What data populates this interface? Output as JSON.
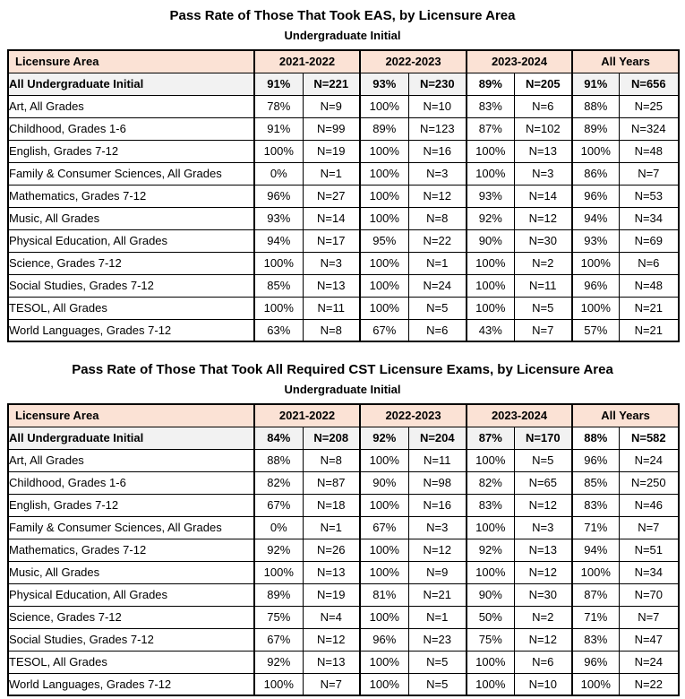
{
  "colors": {
    "header_bg": "#fbe2d5",
    "summary_bg": "#f2f2f2",
    "border": "#000000",
    "page_bg": "#ffffff",
    "text": "#000000"
  },
  "tables": [
    {
      "id": "eas",
      "title": "Pass Rate of Those That Took EAS, by Licensure Area",
      "subtitle": "Undergraduate Initial",
      "columns": {
        "label_header": "Licensure Area",
        "year_groups": [
          "2021-2022",
          "2022-2023",
          "2023-2024",
          "All Years"
        ],
        "subcolumns_per_group": [
          "pass_rate",
          "n_count"
        ]
      },
      "summary_row": {
        "label": "All Undergraduate Initial",
        "values": [
          "91%",
          "N=221",
          "93%",
          "N=230",
          "89%",
          "N=205",
          "91%",
          "N=656"
        ],
        "plain_background_cells": [
          4,
          5
        ]
      },
      "rows": [
        {
          "label": "Art, All Grades",
          "values": [
            "78%",
            "N=9",
            "100%",
            "N=10",
            "83%",
            "N=6",
            "88%",
            "N=25"
          ]
        },
        {
          "label": "Childhood, Grades 1-6",
          "values": [
            "91%",
            "N=99",
            "89%",
            "N=123",
            "87%",
            "N=102",
            "89%",
            "N=324"
          ]
        },
        {
          "label": "English, Grades 7-12",
          "values": [
            "100%",
            "N=19",
            "100%",
            "N=16",
            "100%",
            "N=13",
            "100%",
            "N=48"
          ]
        },
        {
          "label": "Family & Consumer Sciences, All Grades",
          "values": [
            "0%",
            "N=1",
            "100%",
            "N=3",
            "100%",
            "N=3",
            "86%",
            "N=7"
          ]
        },
        {
          "label": "Mathematics, Grades 7-12",
          "values": [
            "96%",
            "N=27",
            "100%",
            "N=12",
            "93%",
            "N=14",
            "96%",
            "N=53"
          ]
        },
        {
          "label": "Music, All Grades",
          "values": [
            "93%",
            "N=14",
            "100%",
            "N=8",
            "92%",
            "N=12",
            "94%",
            "N=34"
          ]
        },
        {
          "label": "Physical Education, All Grades",
          "values": [
            "94%",
            "N=17",
            "95%",
            "N=22",
            "90%",
            "N=30",
            "93%",
            "N=69"
          ]
        },
        {
          "label": "Science, Grades 7-12",
          "values": [
            "100%",
            "N=3",
            "100%",
            "N=1",
            "100%",
            "N=2",
            "100%",
            "N=6"
          ]
        },
        {
          "label": "Social Studies, Grades 7-12",
          "values": [
            "85%",
            "N=13",
            "100%",
            "N=24",
            "100%",
            "N=11",
            "96%",
            "N=48"
          ]
        },
        {
          "label": "TESOL, All Grades",
          "values": [
            "100%",
            "N=11",
            "100%",
            "N=5",
            "100%",
            "N=5",
            "100%",
            "N=21"
          ]
        },
        {
          "label": "World Languages, Grades 7-12",
          "values": [
            "63%",
            "N=8",
            "67%",
            "N=6",
            "43%",
            "N=7",
            "57%",
            "N=21"
          ]
        }
      ]
    },
    {
      "id": "cst",
      "title": "Pass Rate of Those That Took All Required CST Licensure Exams, by Licensure Area",
      "subtitle": "Undergraduate Initial",
      "columns": {
        "label_header": "Licensure Area",
        "year_groups": [
          "2021-2022",
          "2022-2023",
          "2023-2024",
          "All Years"
        ],
        "subcolumns_per_group": [
          "pass_rate",
          "n_count"
        ]
      },
      "summary_row": {
        "label": "All Undergraduate Initial",
        "values": [
          "84%",
          "N=208",
          "92%",
          "N=204",
          "87%",
          "N=170",
          "88%",
          "N=582"
        ],
        "plain_background_cells": [
          6,
          7
        ]
      },
      "rows": [
        {
          "label": "Art, All Grades",
          "values": [
            "88%",
            "N=8",
            "100%",
            "N=11",
            "100%",
            "N=5",
            "96%",
            "N=24"
          ]
        },
        {
          "label": "Childhood, Grades 1-6",
          "values": [
            "82%",
            "N=87",
            "90%",
            "N=98",
            "82%",
            "N=65",
            "85%",
            "N=250"
          ]
        },
        {
          "label": "English, Grades 7-12",
          "values": [
            "67%",
            "N=18",
            "100%",
            "N=16",
            "83%",
            "N=12",
            "83%",
            "N=46"
          ]
        },
        {
          "label": "Family & Consumer Sciences, All Grades",
          "values": [
            "0%",
            "N=1",
            "67%",
            "N=3",
            "100%",
            "N=3",
            "71%",
            "N=7"
          ]
        },
        {
          "label": "Mathematics, Grades 7-12",
          "values": [
            "92%",
            "N=26",
            "100%",
            "N=12",
            "92%",
            "N=13",
            "94%",
            "N=51"
          ]
        },
        {
          "label": "Music, All Grades",
          "values": [
            "100%",
            "N=13",
            "100%",
            "N=9",
            "100%",
            "N=12",
            "100%",
            "N=34"
          ]
        },
        {
          "label": "Physical Education, All Grades",
          "values": [
            "89%",
            "N=19",
            "81%",
            "N=21",
            "90%",
            "N=30",
            "87%",
            "N=70"
          ]
        },
        {
          "label": "Science, Grades 7-12",
          "values": [
            "75%",
            "N=4",
            "100%",
            "N=1",
            "50%",
            "N=2",
            "71%",
            "N=7"
          ]
        },
        {
          "label": "Social Studies, Grades 7-12",
          "values": [
            "67%",
            "N=12",
            "96%",
            "N=23",
            "75%",
            "N=12",
            "83%",
            "N=47"
          ]
        },
        {
          "label": "TESOL, All Grades",
          "values": [
            "92%",
            "N=13",
            "100%",
            "N=5",
            "100%",
            "N=6",
            "96%",
            "N=24"
          ]
        },
        {
          "label": "World Languages, Grades 7-12",
          "values": [
            "100%",
            "N=7",
            "100%",
            "N=5",
            "100%",
            "N=10",
            "100%",
            "N=22"
          ]
        }
      ]
    }
  ]
}
